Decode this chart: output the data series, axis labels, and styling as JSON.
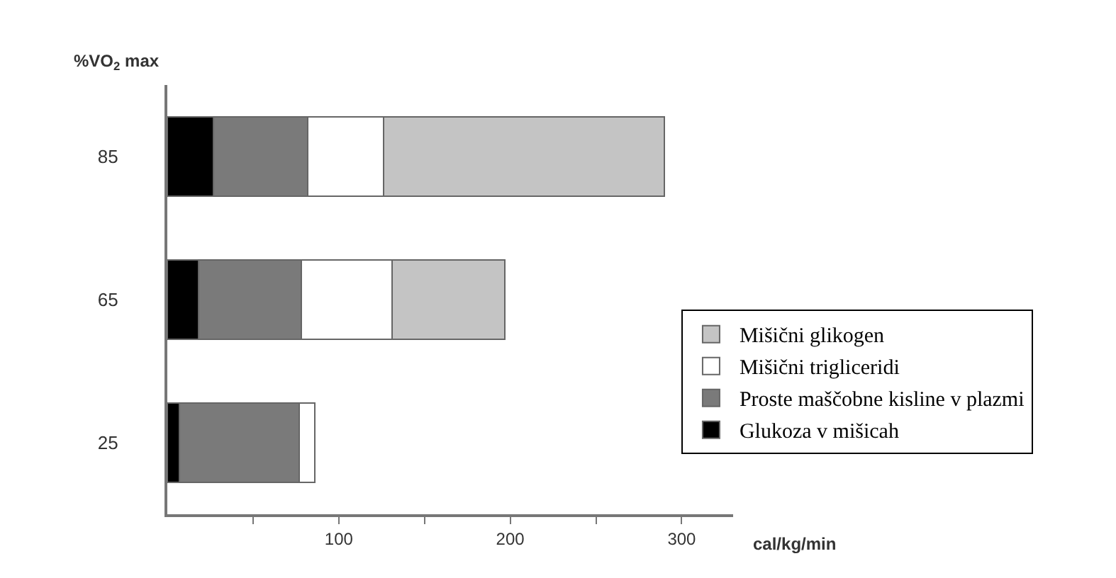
{
  "chart_data": {
    "type": "bar",
    "orientation": "horizontal",
    "stacked": true,
    "categories": [
      "85",
      "65",
      "25"
    ],
    "series": [
      {
        "name": "Glukoza v mišicah",
        "color": "#000000",
        "values": [
          27,
          18,
          7
        ]
      },
      {
        "name": "Proste maščobne kisline v plazmi",
        "color": "#7a7a7a",
        "values": [
          55,
          60,
          70
        ]
      },
      {
        "name": "Mišični trigliceridi",
        "color": "#ffffff",
        "values": [
          44,
          53,
          9
        ]
      },
      {
        "name": "Mišični glikogen",
        "color": "#c4c4c4",
        "values": [
          164,
          66,
          null
        ]
      }
    ],
    "xlabel": "cal/kg/min",
    "ylabel": "%VO$_{2}$ max",
    "xlim": [
      0,
      330
    ],
    "xticks": [
      {
        "value": 50,
        "label": null
      },
      100,
      {
        "value": 150,
        "label": null
      },
      200,
      {
        "value": 250,
        "label": null
      },
      300
    ],
    "legend": "bottom right"
  }
}
